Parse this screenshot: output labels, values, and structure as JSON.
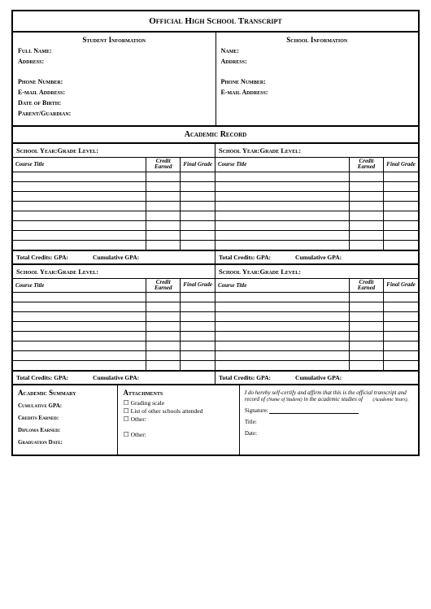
{
  "title": "Official High School Transcript",
  "student": {
    "header": "Student Information",
    "fields": [
      "Full Name:",
      "Address:",
      "Phone Number:",
      "E-mail Address:",
      "Date of Birth:",
      "Parent/Guardian:"
    ]
  },
  "school": {
    "header": "School Information",
    "fields": [
      "Name:",
      "Address:",
      "Phone Number:",
      "E-mail Address:"
    ]
  },
  "academic_header": "Academic Record",
  "year_label": "School Year:Grade Level:",
  "course_headers": {
    "title": "Course Title",
    "credit": "Credit Earned",
    "grade": "Final Grade"
  },
  "empty_rows": 8,
  "totals": {
    "credits": "Total Credits: GPA:",
    "cumulative": "Cumulative GPA:"
  },
  "summary": {
    "header": "Academic Summary",
    "items": [
      "Cumulative GPA:",
      "Credits Earned:",
      "Diploma Earned:",
      "Graduation Date:"
    ]
  },
  "attachments": {
    "header": "Attachments",
    "items": [
      "Grading scale",
      "List of other schools attended",
      "Other:",
      "Other:"
    ]
  },
  "cert": {
    "text1": "I do hereby self-certify and affirm that this is the official transcript and record of",
    "note1": "(Name of Student)",
    "text2": "in the academic studies of",
    "note2": "(Academic Years).",
    "sig": "Signature:",
    "title": "Title:",
    "date": "Date:"
  },
  "colors": {
    "border": "#000000",
    "bg": "#ffffff",
    "text": "#000000"
  }
}
